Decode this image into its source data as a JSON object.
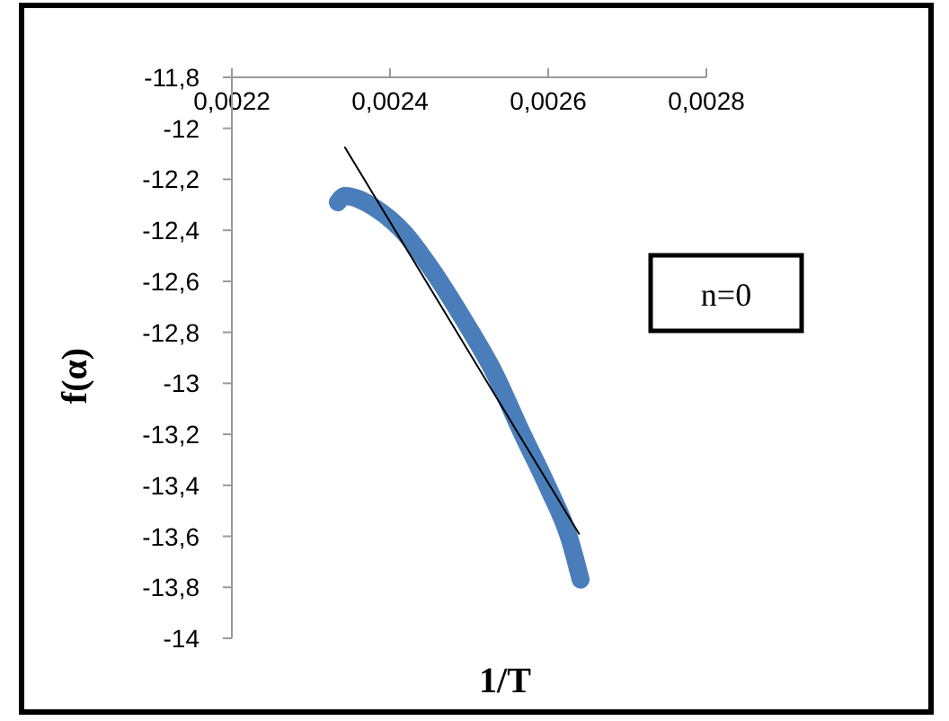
{
  "chart_data": {
    "type": "line",
    "xlabel": "1/T",
    "ylabel": "f(α)",
    "xlim": [
      0.0022,
      0.0028
    ],
    "xticks": [
      {
        "value": 0.0022,
        "label": "0,0022"
      },
      {
        "value": 0.0024,
        "label": "0,0024"
      },
      {
        "value": 0.0026,
        "label": "0,0026"
      },
      {
        "value": 0.0028,
        "label": "0,0028"
      }
    ],
    "ylim": [
      -14,
      -11.8
    ],
    "yticks": [
      {
        "value": -11.8,
        "label": "-11,8"
      },
      {
        "value": -12,
        "label": "-12"
      },
      {
        "value": -12.2,
        "label": "-12,2"
      },
      {
        "value": -12.4,
        "label": "-12,4"
      },
      {
        "value": -12.6,
        "label": "-12,6"
      },
      {
        "value": -12.8,
        "label": "-12,8"
      },
      {
        "value": -13,
        "label": "-13"
      },
      {
        "value": -13.2,
        "label": "-13,2"
      },
      {
        "value": -13.4,
        "label": "-13,4"
      },
      {
        "value": -13.6,
        "label": "-13,6"
      },
      {
        "value": -13.8,
        "label": "-13,8"
      },
      {
        "value": -14,
        "label": "-14"
      }
    ],
    "grid": false,
    "annotations": [
      "n=0"
    ],
    "series": [
      {
        "color": "#4a7ebb",
        "x": [
          0.002334,
          0.002343,
          0.00238,
          0.002418,
          0.002452,
          0.002493,
          0.002532,
          0.002566,
          0.0026,
          0.002627,
          0.002641
        ],
        "values": [
          -12.29,
          -12.265,
          -12.31,
          -12.41,
          -12.55,
          -12.75,
          -12.96,
          -13.19,
          -13.41,
          -13.61,
          -13.77
        ]
      },
      {
        "type": "line",
        "color": "#000000",
        "x": [
          0.002343,
          0.002639
        ],
        "values": [
          -12.075,
          -13.59
        ]
      }
    ]
  }
}
